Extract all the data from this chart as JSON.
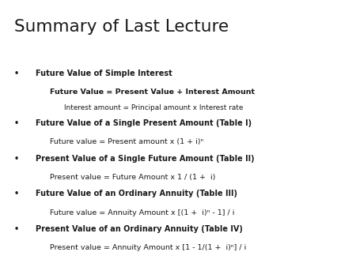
{
  "title": "Summary of Last Lecture",
  "background_color": "#ffffff",
  "text_color": "#1a1a1a",
  "title_fontsize": 15.5,
  "bullet_fontsize": 7.0,
  "sub_fontsize": 6.8,
  "sub2_fontsize": 6.4,
  "bullet_dot": "•",
  "content": [
    {
      "type": "bullet",
      "bold": true,
      "text": "Future Value of Simple Interest"
    },
    {
      "type": "sub",
      "bold": true,
      "text": "Future Value = Present Value + Interest Amount"
    },
    {
      "type": "sub2",
      "bold": false,
      "text": "Interest amount = Principal amount x Interest rate"
    },
    {
      "type": "bullet",
      "bold": true,
      "text": "Future Value of a Single Present Amount (Table I)"
    },
    {
      "type": "sub",
      "bold": false,
      "text": "Future value = Present amount x (1 + i)ⁿ"
    },
    {
      "type": "bullet",
      "bold": true,
      "text": "Present Value of a Single Future Amount (Table II)"
    },
    {
      "type": "sub",
      "bold": false,
      "text": "Present value = Future Amount x 1 / (1 +  i)"
    },
    {
      "type": "bullet",
      "bold": true,
      "text": "Future Value of an Ordinary Annuity (Table III)"
    },
    {
      "type": "sub",
      "bold": false,
      "text": "Future value = Annuity Amount x [(1 +  i)ⁿ - 1] / i"
    },
    {
      "type": "bullet",
      "bold": true,
      "text": "Present Value of an Ordinary Annuity (Table IV)"
    },
    {
      "type": "sub",
      "bold": false,
      "text": "Present value = Annuity Amount x [1 - 1/(1 +  i)ⁿ] / i"
    }
  ]
}
